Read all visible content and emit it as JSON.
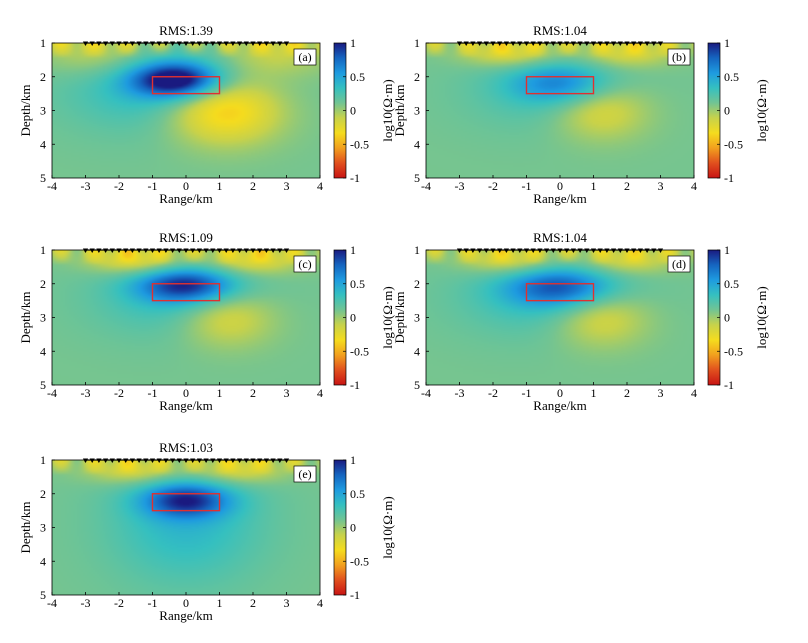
{
  "chart_data": {
    "type": "heatmap",
    "shared": {
      "xlabel": "Range/km",
      "ylabel": "Depth/km",
      "xlim": [
        -4,
        4
      ],
      "ylim": [
        1,
        5
      ],
      "x_ticks": [
        "-4",
        "-3",
        "-2",
        "-1",
        "0",
        "1",
        "2",
        "3",
        "4"
      ],
      "y_ticks": [
        "1",
        "2",
        "3",
        "4",
        "5"
      ],
      "colorbar": {
        "label": "log10(Ω·m)",
        "range": [
          -1,
          1
        ],
        "ticks": [
          "1",
          "0.5",
          "0",
          "-0.5",
          "-1"
        ],
        "colors": [
          "#1a1a80",
          "#1565c0",
          "#1e9be0",
          "#35c0c0",
          "#72c493",
          "#c8d24a",
          "#f5dc1e",
          "#f2a01e",
          "#e1501e",
          "#c81414"
        ]
      },
      "target_box": {
        "x": [
          -1,
          1
        ],
        "depth": [
          2,
          2.5
        ],
        "color": "#e03030"
      },
      "stations": {
        "x_start": -3,
        "x_end": 3,
        "count": 31
      },
      "background_value": 0.1
    },
    "panels": [
      {
        "id": "a",
        "label": "(a)",
        "title": "RMS:1.39",
        "anomalies": [
          {
            "x": -0.3,
            "depth": 2.1,
            "value": 1.0,
            "sx": 0.9,
            "sy": 0.35
          },
          {
            "x": -0.5,
            "depth": 2.3,
            "value": 0.45,
            "sx": 2.0,
            "sy": 0.9
          },
          {
            "x": 1.1,
            "depth": 2.95,
            "value": -0.55,
            "sx": 1.2,
            "sy": 0.7
          },
          {
            "x": -2.6,
            "depth": 1.3,
            "value": -0.15,
            "sx": 1.2,
            "sy": 0.5
          },
          {
            "x": 2.6,
            "depth": 1.3,
            "value": -0.15,
            "sx": 1.2,
            "sy": 0.5
          }
        ]
      },
      {
        "id": "b",
        "label": "(b)",
        "title": "RMS:1.04",
        "anomalies": [
          {
            "x": 0.0,
            "depth": 2.2,
            "value": 0.5,
            "sx": 1.0,
            "sy": 0.4
          },
          {
            "x": -0.3,
            "depth": 2.4,
            "value": 0.3,
            "sx": 1.7,
            "sy": 0.8
          },
          {
            "x": 1.2,
            "depth": 3.0,
            "value": -0.25,
            "sx": 1.0,
            "sy": 0.6
          },
          {
            "x": -1.5,
            "depth": 1.3,
            "value": -0.25,
            "sx": 1.0,
            "sy": 0.3
          },
          {
            "x": 2.0,
            "depth": 1.3,
            "value": -0.2,
            "sx": 1.0,
            "sy": 0.3
          }
        ]
      },
      {
        "id": "c",
        "label": "(c)",
        "title": "RMS:1.09",
        "anomalies": [
          {
            "x": 0.0,
            "depth": 2.05,
            "value": 0.8,
            "sx": 1.0,
            "sy": 0.35
          },
          {
            "x": -0.3,
            "depth": 2.4,
            "value": 0.35,
            "sx": 1.7,
            "sy": 0.8
          },
          {
            "x": 1.2,
            "depth": 3.0,
            "value": -0.25,
            "sx": 1.0,
            "sy": 0.6
          },
          {
            "x": -1.5,
            "depth": 1.3,
            "value": -0.3,
            "sx": 1.0,
            "sy": 0.3
          },
          {
            "x": 2.0,
            "depth": 1.3,
            "value": -0.25,
            "sx": 1.0,
            "sy": 0.3
          }
        ]
      },
      {
        "id": "d",
        "label": "(d)",
        "title": "RMS:1.04",
        "anomalies": [
          {
            "x": 0.0,
            "depth": 2.1,
            "value": 0.65,
            "sx": 1.1,
            "sy": 0.4
          },
          {
            "x": -0.4,
            "depth": 2.4,
            "value": 0.35,
            "sx": 1.8,
            "sy": 0.8
          },
          {
            "x": 1.2,
            "depth": 3.0,
            "value": -0.25,
            "sx": 1.0,
            "sy": 0.6
          },
          {
            "x": -1.5,
            "depth": 1.3,
            "value": -0.25,
            "sx": 1.0,
            "sy": 0.3
          },
          {
            "x": 2.0,
            "depth": 1.3,
            "value": -0.2,
            "sx": 1.0,
            "sy": 0.3
          }
        ]
      },
      {
        "id": "e",
        "label": "(e)",
        "title": "RMS:1.03",
        "anomalies": [
          {
            "x": 0.0,
            "depth": 2.2,
            "value": 0.75,
            "sx": 0.9,
            "sy": 0.35
          },
          {
            "x": 0.0,
            "depth": 2.8,
            "value": 0.4,
            "sx": 1.6,
            "sy": 1.3
          },
          {
            "x": -1.5,
            "depth": 1.3,
            "value": -0.25,
            "sx": 1.0,
            "sy": 0.3
          },
          {
            "x": 1.5,
            "depth": 1.3,
            "value": -0.25,
            "sx": 1.0,
            "sy": 0.3
          }
        ]
      }
    ]
  }
}
